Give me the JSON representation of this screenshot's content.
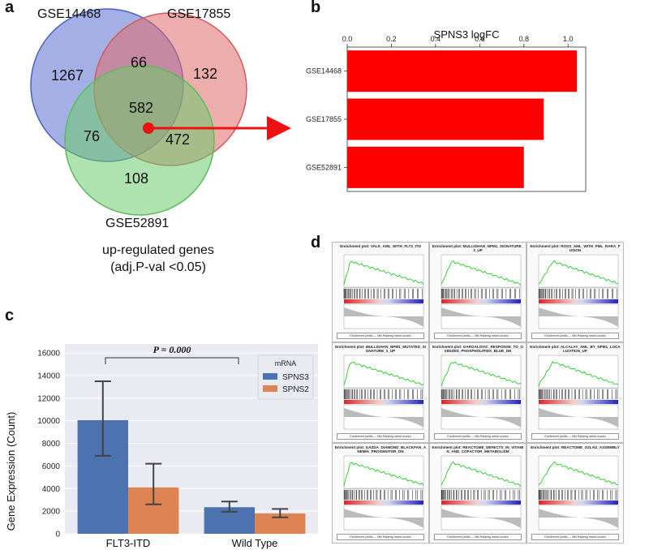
{
  "panels": {
    "a": "a",
    "b": "b",
    "c": "c",
    "d": "d"
  },
  "venn": {
    "sets": [
      "GSE14468",
      "GSE17855",
      "GSE52891"
    ],
    "regions": {
      "only_a": "1267",
      "only_b": "132",
      "only_c": "108",
      "ab": "66",
      "ac": "76",
      "bc": "472",
      "abc": "582"
    },
    "caption_line1": "up-regulated genes",
    "caption_line2": "(adj.P-val <0.05)",
    "colors": {
      "a": "#5a6fd0",
      "b": "#e06a6a",
      "c": "#6ccb6c"
    }
  },
  "chart_data": [
    {
      "type": "bar",
      "orientation": "horizontal",
      "title": "SPNS3 logFC",
      "categories": [
        "GSE14468",
        "GSE17855",
        "GSE52891"
      ],
      "values": [
        1.04,
        0.89,
        0.8
      ],
      "xlim": [
        0,
        1.08
      ],
      "xticks": [
        "0.0",
        "0.2",
        "0.4",
        "0.6",
        "0.8",
        "1.0"
      ],
      "tick_values": [
        0,
        0.2,
        0.4,
        0.6,
        0.8,
        1.0
      ],
      "color": "#ff0000"
    },
    {
      "type": "bar",
      "title": "",
      "categories": [
        "FLT3-ITD",
        "Wild Type"
      ],
      "series": [
        {
          "name": "SPNS3",
          "values": [
            10050,
            2350
          ],
          "err_low": [
            6900,
            1950
          ],
          "err_high": [
            13500,
            2850
          ],
          "color": "#4c72b0"
        },
        {
          "name": "SPNS2",
          "values": [
            4100,
            1800
          ],
          "err_low": [
            2600,
            1450
          ],
          "err_high": [
            6200,
            2200
          ],
          "color": "#dd8452"
        }
      ],
      "ylabel": "Gene Expression (Count)",
      "ylim": [
        0,
        16800
      ],
      "yticks": [
        "0",
        "2000",
        "4000",
        "6000",
        "8000",
        "10000",
        "12000",
        "14000",
        "16000"
      ],
      "ytick_values": [
        0,
        2000,
        4000,
        6000,
        8000,
        10000,
        12000,
        14000,
        16000
      ],
      "legend_title": "mRNA",
      "legend_position": "top-right",
      "annotation": "P = 0.000"
    }
  ],
  "gsea": {
    "plots": [
      {
        "title": "Enrichment plot: VALK_AML_WITH_FLT3_ITD"
      },
      {
        "title": "Enrichment plot: MULLIGHAN_NPM1_SIGNATURE_3_UP"
      },
      {
        "title": "Enrichment plot: ROSS_AML_WITH_PML_RARA_FUSION"
      },
      {
        "title": "Enrichment plot: MULLIGHAN_NPM1_MUTATED_SIGNATURE_1_UP"
      },
      {
        "title": "Enrichment plot: GARGALOVIC_RESPONSE_TO_OXIDIZED_PHOSPHOLIPIDS_BLUE_DN"
      },
      {
        "title": "Enrichment plot: ALCALAY_AML_BY_NPM1_LOCALIZATION_UP"
      },
      {
        "title": "Enrichment plot: GAZDA_DIAMOND_BLACKFAN_ANEMIA_PROGENITOR_DN"
      },
      {
        "title": "Enrichment plot: REACTOME_DEFECTS_IN_VITAMIN_AND_COFACTOR_METABOLISM"
      },
      {
        "title": "Enrichment plot: REACTOME_O2LAU_ASSEMBLY"
      }
    ],
    "legend_text": "Enrichment profile — Hits    Ranking metric scores"
  }
}
